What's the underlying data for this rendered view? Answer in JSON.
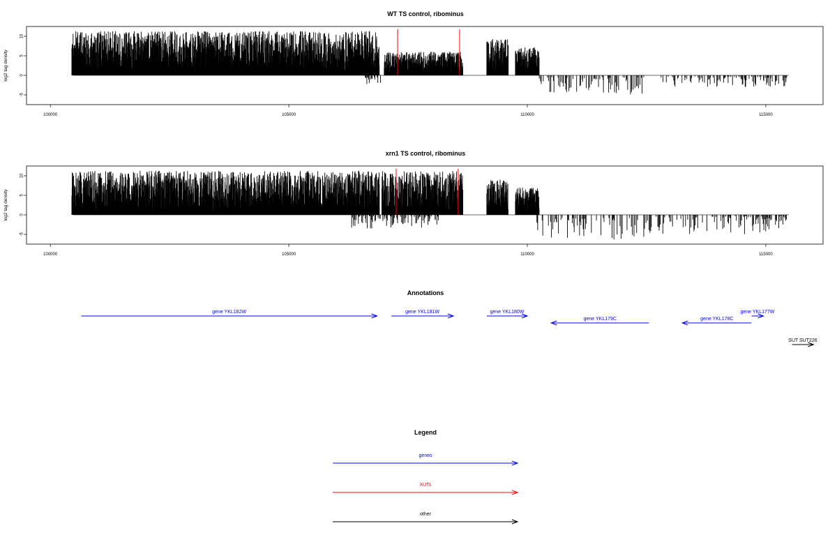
{
  "chart_data": [
    {
      "type": "bar",
      "title": "WT TS control, ribominus",
      "ylabel": "log2 tag density",
      "xlim": [
        99500,
        116200
      ],
      "ylim": [
        -7.5,
        12.5
      ],
      "xticks": [
        100000,
        105000,
        110000,
        115000
      ],
      "yticks": [
        -5,
        0,
        5,
        10
      ],
      "grid": false,
      "regions": [
        {
          "x0": 100450,
          "x1": 106900,
          "sign": 1,
          "min": 1,
          "max": 11.3
        },
        {
          "x0": 107000,
          "x1": 108650,
          "sign": 1,
          "min": 0.5,
          "max": 6
        },
        {
          "x0": 109150,
          "x1": 109600,
          "sign": 1,
          "min": 1,
          "max": 9.5
        },
        {
          "x0": 109750,
          "x1": 110250,
          "sign": 1,
          "min": 1,
          "max": 7.2
        },
        {
          "x0": 110250,
          "x1": 112450,
          "sign": -1,
          "min": 0.5,
          "max": 5.2
        },
        {
          "x0": 112700,
          "x1": 115450,
          "sign": -1,
          "min": 0.3,
          "max": 3
        },
        {
          "x0": 106600,
          "x1": 106950,
          "sign": -1,
          "min": 0.5,
          "max": 2.5
        }
      ],
      "vlines": [
        107280,
        108580
      ],
      "vline_color": "#ff0000"
    },
    {
      "type": "bar",
      "title": "xrn1 TS control, ribominus",
      "ylabel": "log2 tag density",
      "xlim": [
        99500,
        116200
      ],
      "ylim": [
        -7.5,
        12.5
      ],
      "xticks": [
        100000,
        105000,
        110000,
        115000
      ],
      "yticks": [
        -5,
        0,
        5,
        10
      ],
      "grid": false,
      "regions": [
        {
          "x0": 100450,
          "x1": 106900,
          "sign": 1,
          "min": 1,
          "max": 11.3
        },
        {
          "x0": 106950,
          "x1": 108650,
          "sign": 1,
          "min": 1,
          "max": 11.2
        },
        {
          "x0": 109150,
          "x1": 109600,
          "sign": 1,
          "min": 1,
          "max": 9
        },
        {
          "x0": 109750,
          "x1": 110250,
          "sign": 1,
          "min": 1,
          "max": 7
        },
        {
          "x0": 110150,
          "x1": 112600,
          "sign": -1,
          "min": 0.8,
          "max": 6.5
        },
        {
          "x0": 112700,
          "x1": 115450,
          "sign": -1,
          "min": 0.3,
          "max": 5.2
        },
        {
          "x0": 106300,
          "x1": 108150,
          "sign": -1,
          "min": 0.3,
          "max": 3.5
        }
      ],
      "vlines": [
        107250,
        108550
      ],
      "vline_color": "#ff0000"
    }
  ],
  "annotations": {
    "title": "Annotations",
    "features": [
      {
        "label": "gene YKL182W",
        "x0": 100650,
        "x1": 106850,
        "strand": "+",
        "row": 0,
        "color": "#0000ff"
      },
      {
        "label": "gene YKL181W",
        "x0": 107150,
        "x1": 108450,
        "strand": "+",
        "row": 0,
        "color": "#0000ff"
      },
      {
        "label": "gene YKL180W",
        "x0": 109150,
        "x1": 110000,
        "strand": "+",
        "row": 0,
        "color": "#0000ff"
      },
      {
        "label": "gene YKL179C",
        "x0": 110500,
        "x1": 112550,
        "strand": "-",
        "row": 1,
        "color": "#0000ff"
      },
      {
        "label": "gene YKL178C",
        "x0": 113250,
        "x1": 114700,
        "strand": "-",
        "row": 1,
        "color": "#0000ff"
      },
      {
        "label": "gene YKL177W",
        "x0": 114700,
        "x1": 114950,
        "strand": "+",
        "row": 0,
        "color": "#0000ff"
      },
      {
        "label": "SUT SUT226",
        "x0": 115550,
        "x1": 116000,
        "strand": "+",
        "row": 3,
        "color": "#000000"
      }
    ]
  },
  "legend": {
    "title": "Legend",
    "items": [
      {
        "label": "genes",
        "color": "#0000ff"
      },
      {
        "label": "XUTs",
        "color": "#ff0000"
      },
      {
        "label": "other",
        "color": "#000000"
      }
    ]
  }
}
